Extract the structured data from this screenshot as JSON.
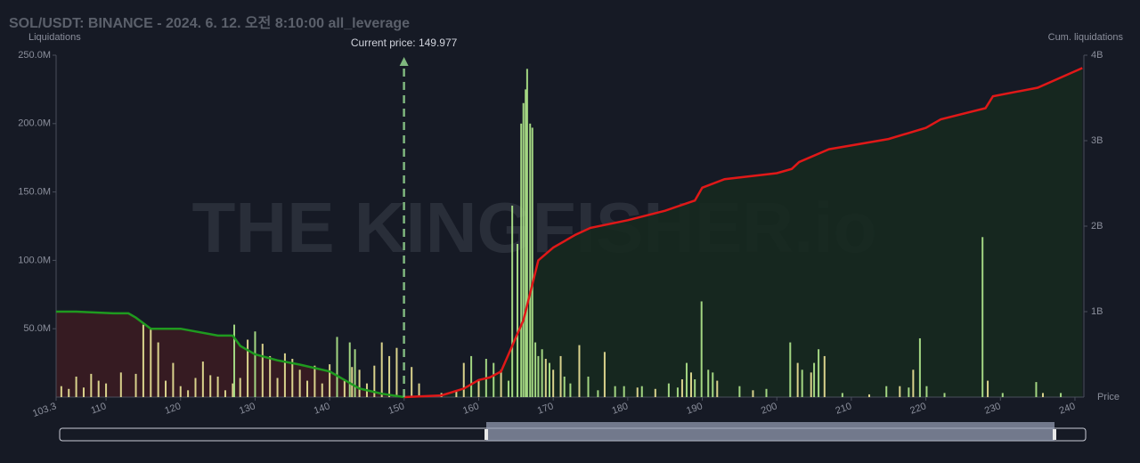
{
  "chart_data": {
    "type": "liquidation-histogram",
    "title": "SOL/USDT: BINANCE - 2024. 6. 12. 오전 8:10:00 all_leverage",
    "y_label": "Liquidations",
    "y2_label": "Cum. liquidations",
    "x_label": "Price",
    "watermark": "THE KINGFISHER.io",
    "current_price": {
      "label": "Current price:",
      "value": 149.977,
      "color": "#7fb77e"
    },
    "xlim": [
      103.3,
      241.2
    ],
    "xticks": [
      103.3,
      110,
      120,
      130,
      140,
      150,
      160,
      170,
      180,
      190,
      200,
      210,
      220,
      230,
      240
    ],
    "ylim": [
      0,
      250000000
    ],
    "yticks": [
      {
        "value": 50000000,
        "label": "50.0M"
      },
      {
        "value": 100000000,
        "label": "100.0M"
      },
      {
        "value": 150000000,
        "label": "150.0M"
      },
      {
        "value": 200000000,
        "label": "200.0M"
      },
      {
        "value": 250000000,
        "label": "250.0M"
      }
    ],
    "y2lim": [
      0,
      4000000000
    ],
    "y2ticks": [
      {
        "value": 1000000000,
        "label": "1B"
      },
      {
        "value": 2000000000,
        "label": "2B"
      },
      {
        "value": 3000000000,
        "label": "3B"
      },
      {
        "value": 4000000000,
        "label": "4B"
      }
    ],
    "series": [
      {
        "color": "#d9d28c",
        "x": [
          104,
          105,
          106,
          107,
          108,
          109,
          110,
          112,
          114,
          115,
          116,
          117,
          118,
          119,
          120,
          121,
          122,
          123,
          124,
          125,
          126,
          127,
          128,
          129,
          131,
          132,
          133,
          134,
          135,
          136,
          137,
          138,
          139,
          140,
          142,
          143,
          144,
          145,
          146,
          147,
          148,
          149,
          151,
          152,
          155,
          157,
          158,
          160,
          163,
          169,
          170,
          171,
          173.5,
          176.9,
          181.3,
          183.7,
          187.3,
          188.5,
          192,
          196.8,
          202.8,
          204.6,
          206.4,
          212.4,
          216.5,
          218.3,
          228.3,
          235.7
        ],
        "values": [
          8000000.0,
          6000000.0,
          15000000.0,
          7000000.0,
          17000000.0,
          12000000.0,
          10000000.0,
          18000000.0,
          17000000.0,
          53000000.0,
          50000000.0,
          40000000.0,
          12000000.0,
          25000000.0,
          8000000.0,
          5000000.0,
          14000000.0,
          26000000.0,
          16000000.0,
          15000000.0,
          5000000.0,
          10000000.0,
          14000000.0,
          42000000.0,
          39000000.0,
          30000000.0,
          14000000.0,
          32000000.0,
          28000000.0,
          20000000.0,
          12000000.0,
          23000000.0,
          10000000.0,
          24000000.0,
          12000000.0,
          22000000.0,
          20000000.0,
          10000000.0,
          23000000.0,
          40000000.0,
          30000000.0,
          36000000.0,
          22000000.0,
          10000000.0,
          3000000.0,
          5000000.0,
          25000000.0,
          12000000.0,
          20000000.0,
          28000000.0,
          20000000.0,
          30000000.0,
          38000000.0,
          33000000.0,
          7000000.0,
          6000000.0,
          13000000.0,
          18000000.0,
          12000000.0,
          5000000.0,
          25000000.0,
          18000000.0,
          30000000.0,
          2000000.0,
          8000000.0,
          20000000.0,
          12000000.0,
          3000000.0
        ]
      },
      {
        "color": "#a3d682",
        "x": [
          127.2,
          130,
          141,
          142.7,
          143.4,
          159,
          161,
          162,
          164,
          164.5,
          165.2,
          165.7,
          166,
          166.3,
          166.5,
          166.9,
          167.2,
          167.6,
          168,
          168.5,
          169.5,
          171.5,
          172.3,
          174.7,
          176,
          178.3,
          179.5,
          181.9,
          185.5,
          186.7,
          187.9,
          189,
          189.9,
          190.8,
          191.4,
          195,
          198.6,
          201.8,
          203.4,
          205,
          205.6,
          208.8,
          214.7,
          217.7,
          219.2,
          220.1,
          222.5,
          227.6,
          230.3,
          234.8,
          238.1
        ],
        "values": [
          53000000.0,
          48000000.0,
          44000000.0,
          40000000.0,
          35000000.0,
          30000000.0,
          28000000.0,
          25000000.0,
          12000000.0,
          140000000.0,
          112000000.0,
          200000000.0,
          215000000.0,
          225000000.0,
          240000000.0,
          200000000.0,
          197000000.0,
          40000000.0,
          30000000.0,
          35000000.0,
          25000000.0,
          15000000.0,
          10000000.0,
          15000000.0,
          5000000.0,
          8000000.0,
          8000000.0,
          8000000.0,
          10000000.0,
          7000000.0,
          25000000.0,
          13000000.0,
          70000000.0,
          20000000.0,
          18000000.0,
          8000000.0,
          6000000.0,
          40000000.0,
          20000000.0,
          25000000.0,
          35000000.0,
          3000000.0,
          8000000.0,
          7000000.0,
          43000000.0,
          8000000.0,
          3000000.0,
          117000000.0,
          3000000.0,
          11000000.0,
          3000000.0
        ]
      },
      {
        "axis": "y2",
        "color": "#1f9a1f",
        "fill": "#3a1c22",
        "x": [
          103.3,
          106,
          111,
          113,
          114,
          116,
          120,
          125,
          127,
          128,
          130,
          133,
          136,
          140,
          142,
          144,
          147,
          150
        ],
        "values": [
          1000000000.0,
          1000000000.0,
          980000000.0,
          980000000.0,
          930000000.0,
          800000000.0,
          800000000.0,
          720000000.0,
          720000000.0,
          600000000.0,
          500000000.0,
          430000000.0,
          380000000.0,
          300000000.0,
          200000000.0,
          100000000.0,
          40000000.0,
          0
        ]
      },
      {
        "axis": "y2",
        "color": "#e01818",
        "fill": "#16291f",
        "x": [
          150,
          155,
          158,
          160,
          161.5,
          163,
          165,
          166,
          167,
          168,
          170,
          173,
          175,
          180,
          185,
          189,
          190,
          193,
          200,
          202,
          203,
          207,
          215,
          220,
          222,
          228,
          229,
          235,
          241
        ],
        "values": [
          0,
          20000000.0,
          100000000.0,
          200000000.0,
          230000000.0,
          300000000.0,
          700000000.0,
          900000000.0,
          1250000000.0,
          1600000000.0,
          1750000000.0,
          1900000000.0,
          1980000000.0,
          2070000000.0,
          2180000000.0,
          2300000000.0,
          2450000000.0,
          2550000000.0,
          2620000000.0,
          2670000000.0,
          2750000000.0,
          2900000000.0,
          3020000000.0,
          3150000000.0,
          3250000000.0,
          3380000000.0,
          3520000000.0,
          3620000000.0,
          3850000000.0
        ]
      }
    ]
  }
}
